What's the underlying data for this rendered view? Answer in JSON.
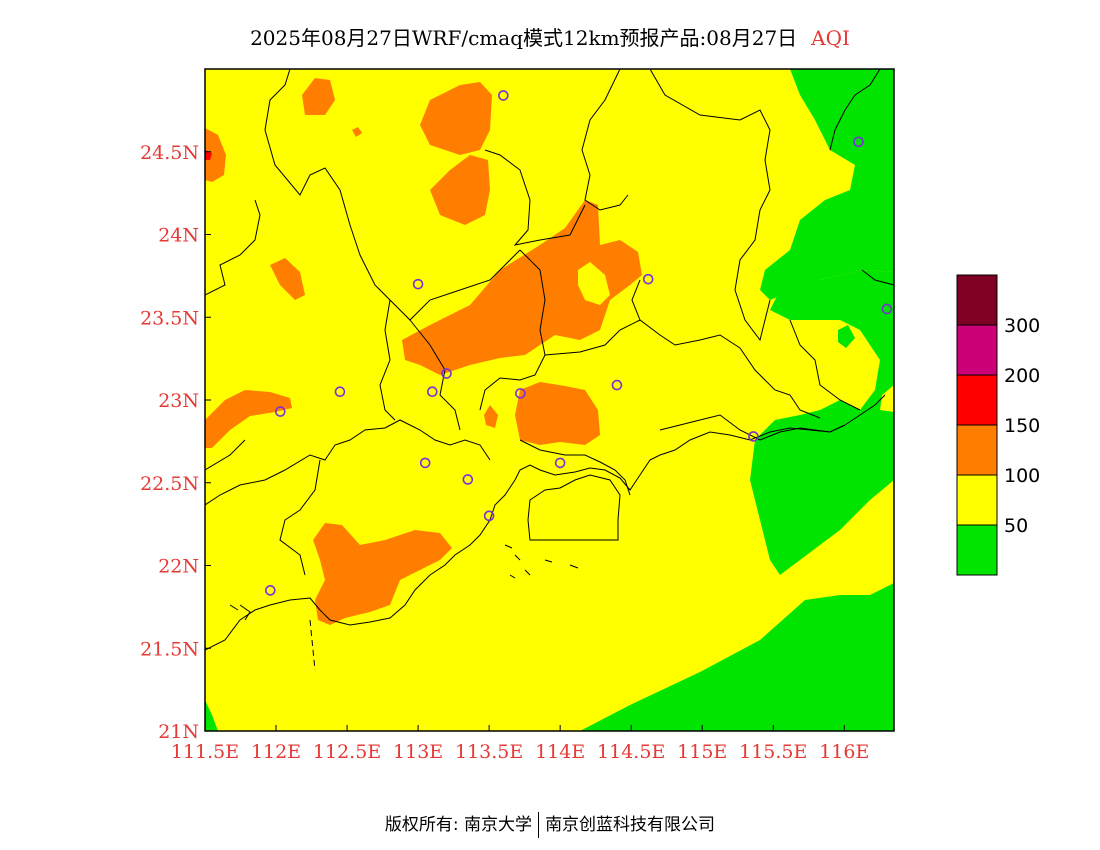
{
  "title": {
    "main": "2025年08月27日WRF/cmaq模式12km预报产品:08月27日",
    "variable": "AQI"
  },
  "axes": {
    "x_ticks": [
      "111.5E",
      "112E",
      "112.5E",
      "113E",
      "113.5E",
      "114E",
      "114.5E",
      "115E",
      "115.5E",
      "116E"
    ],
    "y_ticks": [
      "21N",
      "21.5N",
      "22N",
      "22.5N",
      "23N",
      "23.5N",
      "24N",
      "24.5N"
    ],
    "x_range": [
      111.5,
      116.35
    ],
    "y_range": [
      21.0,
      25.0
    ]
  },
  "legend": {
    "labels": [
      "50",
      "100",
      "150",
      "200",
      "300"
    ],
    "colors": [
      "#00e400",
      "#ffff00",
      "#ff7e00",
      "#ff0000",
      "#cc0077",
      "#7e0023"
    ]
  },
  "colors": {
    "green": "#00e400",
    "yellow": "#ffff00",
    "orange": "#ff7e00",
    "red": "#ff0000",
    "station": "#7b2fd6",
    "tick_text": "#e53935"
  },
  "stations": [
    {
      "lon": 113.6,
      "lat": 24.84
    },
    {
      "lon": 116.1,
      "lat": 24.56
    },
    {
      "lon": 113.0,
      "lat": 23.7
    },
    {
      "lon": 114.62,
      "lat": 23.73
    },
    {
      "lon": 116.3,
      "lat": 23.55
    },
    {
      "lon": 113.2,
      "lat": 23.16
    },
    {
      "lon": 112.45,
      "lat": 23.05
    },
    {
      "lon": 113.1,
      "lat": 23.05
    },
    {
      "lon": 113.72,
      "lat": 23.04
    },
    {
      "lon": 114.4,
      "lat": 23.09
    },
    {
      "lon": 112.03,
      "lat": 22.93
    },
    {
      "lon": 115.36,
      "lat": 22.78
    },
    {
      "lon": 113.05,
      "lat": 22.62
    },
    {
      "lon": 113.35,
      "lat": 22.52
    },
    {
      "lon": 114.0,
      "lat": 22.62
    },
    {
      "lon": 113.5,
      "lat": 22.3
    },
    {
      "lon": 111.96,
      "lat": 21.85
    }
  ],
  "footer": {
    "left": "版权所有: 南京大学",
    "right": "南京创蓝科技有限公司"
  }
}
